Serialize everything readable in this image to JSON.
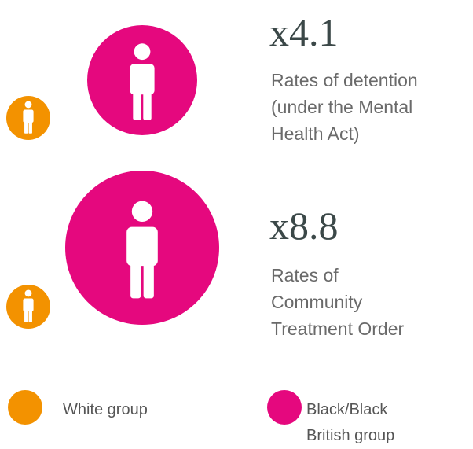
{
  "stats": [
    {
      "value": "x4.1",
      "description": [
        "Rates of detention",
        "(under the Mental",
        "Health Act)"
      ]
    },
    {
      "value": "x8.8",
      "description": [
        "Rates of",
        "Community",
        "Treatment Order"
      ]
    }
  ],
  "legend": [
    {
      "label": [
        "White group"
      ]
    },
    {
      "label": [
        "Black/Black",
        "British group"
      ]
    }
  ]
}
